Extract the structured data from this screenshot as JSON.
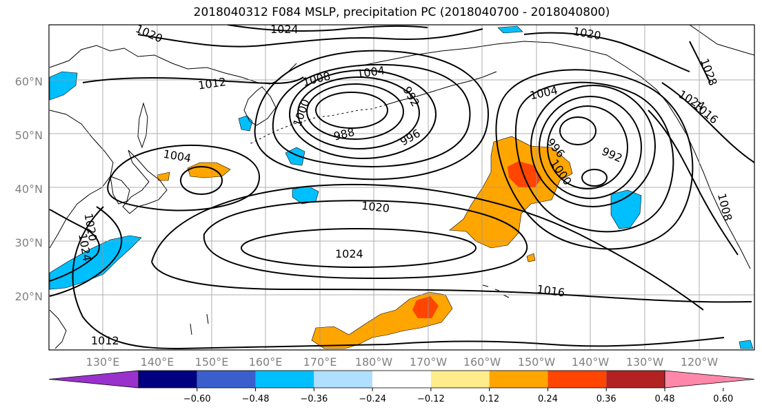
{
  "title": "2018040312 F084 MSLP, precipitation PC (2018040700 - 2018040800)",
  "lat_labels": [
    "60°N",
    "50°N",
    "40°N",
    "30°N",
    "20°N"
  ],
  "lon_labels": [
    "130°E",
    "140°E",
    "150°E",
    "160°E",
    "170°E",
    "180°W",
    "170°W",
    "160°W",
    "150°W",
    "140°W",
    "130°W",
    "120°W"
  ],
  "isobar_labels": [
    "1024",
    "1020",
    "1020",
    "1012",
    "1008",
    "1004",
    "992",
    "1000",
    "988",
    "996",
    "1020",
    "1004",
    "1028",
    "1024",
    "1016",
    "992",
    "996",
    "1000",
    "1004",
    "1024",
    "1020",
    "1024",
    "1016",
    "1012",
    "1008"
  ],
  "colorbar": {
    "ticks": [
      "−0.60",
      "−0.48",
      "−0.36",
      "−0.24",
      "−0.12",
      "0.12",
      "0.24",
      "0.36",
      "0.48",
      "0.60"
    ],
    "colors": [
      "#9932cc",
      "#000080",
      "#3a5fcd",
      "#00bfff",
      "#b0e0ff",
      "#ffffff",
      "#ffec8b",
      "#ffa500",
      "#ff4500",
      "#b22222",
      "#ff88aa"
    ]
  },
  "colors": {
    "blue_fill": "#00bfff",
    "orange_fill": "#ffa500",
    "red_fill": "#ff4500",
    "yellow_fill": "#ffec8b",
    "grid": "#999999",
    "label": "#808080"
  }
}
